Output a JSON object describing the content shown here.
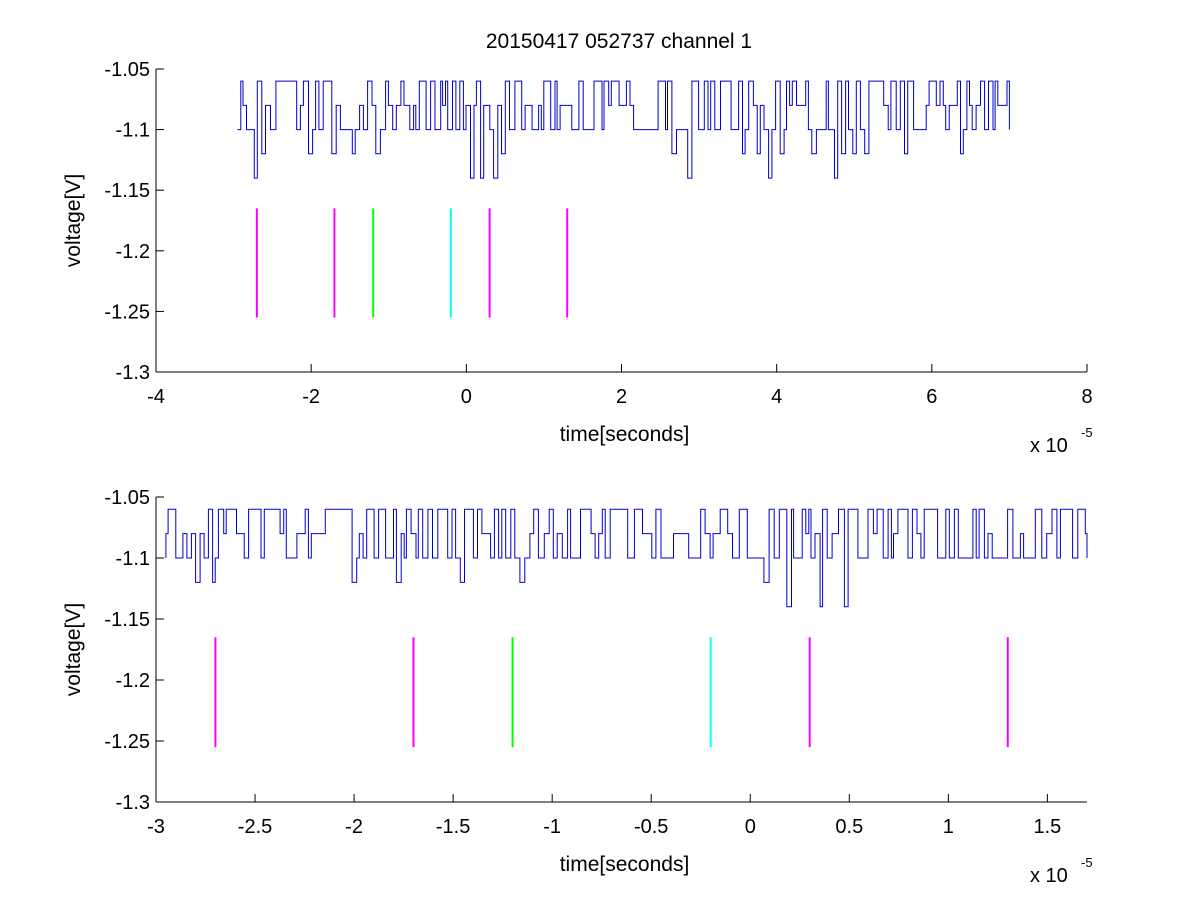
{
  "figure": {
    "title": "20150417 052737 channel 1"
  },
  "chart_data": [
    {
      "type": "line",
      "title": "20150417 052737 channel 1",
      "xlabel": "time[seconds]",
      "ylabel": "voltage[V]",
      "x_multiplier_base": "x 10",
      "x_multiplier_exp": "-5",
      "xlim": [
        -4,
        8
      ],
      "ylim": [
        -1.3,
        -1.05
      ],
      "xticks": [
        -4,
        -2,
        0,
        2,
        4,
        6,
        8
      ],
      "xtick_labels": [
        "-4",
        "-2",
        "0",
        "2",
        "4",
        "6",
        "8"
      ],
      "yticks": [
        -1.3,
        -1.25,
        -1.2,
        -1.15,
        -1.1,
        -1.05
      ],
      "ytick_labels": [
        "-1.3",
        "-1.25",
        "-1.2",
        "-1.15",
        "-1.1",
        "-1.05"
      ],
      "grid": false,
      "series": [
        {
          "color": "#0000cc",
          "x_range": [
            -2.95,
            7.0
          ],
          "levels": [
            -1.14,
            -1.12,
            -1.1,
            -1.08,
            -1.06
          ],
          "dip_x": [
            -2.75,
            -2.65,
            -2.05,
            -1.75,
            -1.45,
            -1.15,
            0.05,
            0.15,
            0.35,
            0.45,
            2.65,
            2.85,
            3.55,
            3.75,
            3.9,
            4.05,
            4.45,
            4.75,
            4.85,
            4.95,
            5.15,
            5.65,
            6.35
          ]
        }
      ],
      "markers": [
        {
          "x": -2.7,
          "color": "#ff00ff",
          "y_range": [
            -1.255,
            -1.165
          ]
        },
        {
          "x": -1.7,
          "color": "#ff00ff",
          "y_range": [
            -1.255,
            -1.165
          ]
        },
        {
          "x": -1.2,
          "color": "#00ff00",
          "y_range": [
            -1.255,
            -1.165
          ]
        },
        {
          "x": -0.2,
          "color": "#00ffff",
          "y_range": [
            -1.255,
            -1.165
          ]
        },
        {
          "x": 0.3,
          "color": "#ff00ff",
          "y_range": [
            -1.255,
            -1.165
          ]
        },
        {
          "x": 1.3,
          "color": "#ff00ff",
          "y_range": [
            -1.255,
            -1.165
          ]
        }
      ]
    },
    {
      "type": "line",
      "title": "",
      "xlabel": "time[seconds]",
      "ylabel": "voltage[V]",
      "x_multiplier_base": "x 10",
      "x_multiplier_exp": "-5",
      "xlim": [
        -3.0,
        1.7
      ],
      "ylim": [
        -1.3,
        -1.05
      ],
      "xticks": [
        -3,
        -2.5,
        -2,
        -1.5,
        -1,
        -0.5,
        0,
        0.5,
        1,
        1.5
      ],
      "xtick_labels": [
        "-3",
        "-2.5",
        "-2",
        "-1.5",
        "-1",
        "-0.5",
        "0",
        "0.5",
        "1",
        "1.5"
      ],
      "yticks": [
        -1.3,
        -1.25,
        -1.2,
        -1.15,
        -1.1,
        -1.05
      ],
      "ytick_labels": [
        "-1.3",
        "-1.25",
        "-1.2",
        "-1.15",
        "-1.1",
        "-1.05"
      ],
      "grid": false,
      "series": [
        {
          "color": "#0000cc",
          "x_range": [
            -2.95,
            1.7
          ],
          "levels": [
            -1.14,
            -1.12,
            -1.1,
            -1.08,
            -1.06
          ],
          "dip_x": [
            -2.8,
            -2.72,
            -2.02,
            -1.78,
            -1.46,
            -1.17,
            0.07,
            0.18,
            0.34,
            0.48
          ]
        }
      ],
      "markers": [
        {
          "x": -2.7,
          "color": "#ff00ff",
          "y_range": [
            -1.255,
            -1.165
          ]
        },
        {
          "x": -1.7,
          "color": "#ff00ff",
          "y_range": [
            -1.255,
            -1.165
          ]
        },
        {
          "x": -1.2,
          "color": "#00ff00",
          "y_range": [
            -1.255,
            -1.165
          ]
        },
        {
          "x": -0.2,
          "color": "#00ffff",
          "y_range": [
            -1.255,
            -1.165
          ]
        },
        {
          "x": 0.3,
          "color": "#ff00ff",
          "y_range": [
            -1.255,
            -1.165
          ]
        },
        {
          "x": 1.3,
          "color": "#ff00ff",
          "y_range": [
            -1.255,
            -1.165
          ]
        }
      ]
    }
  ]
}
